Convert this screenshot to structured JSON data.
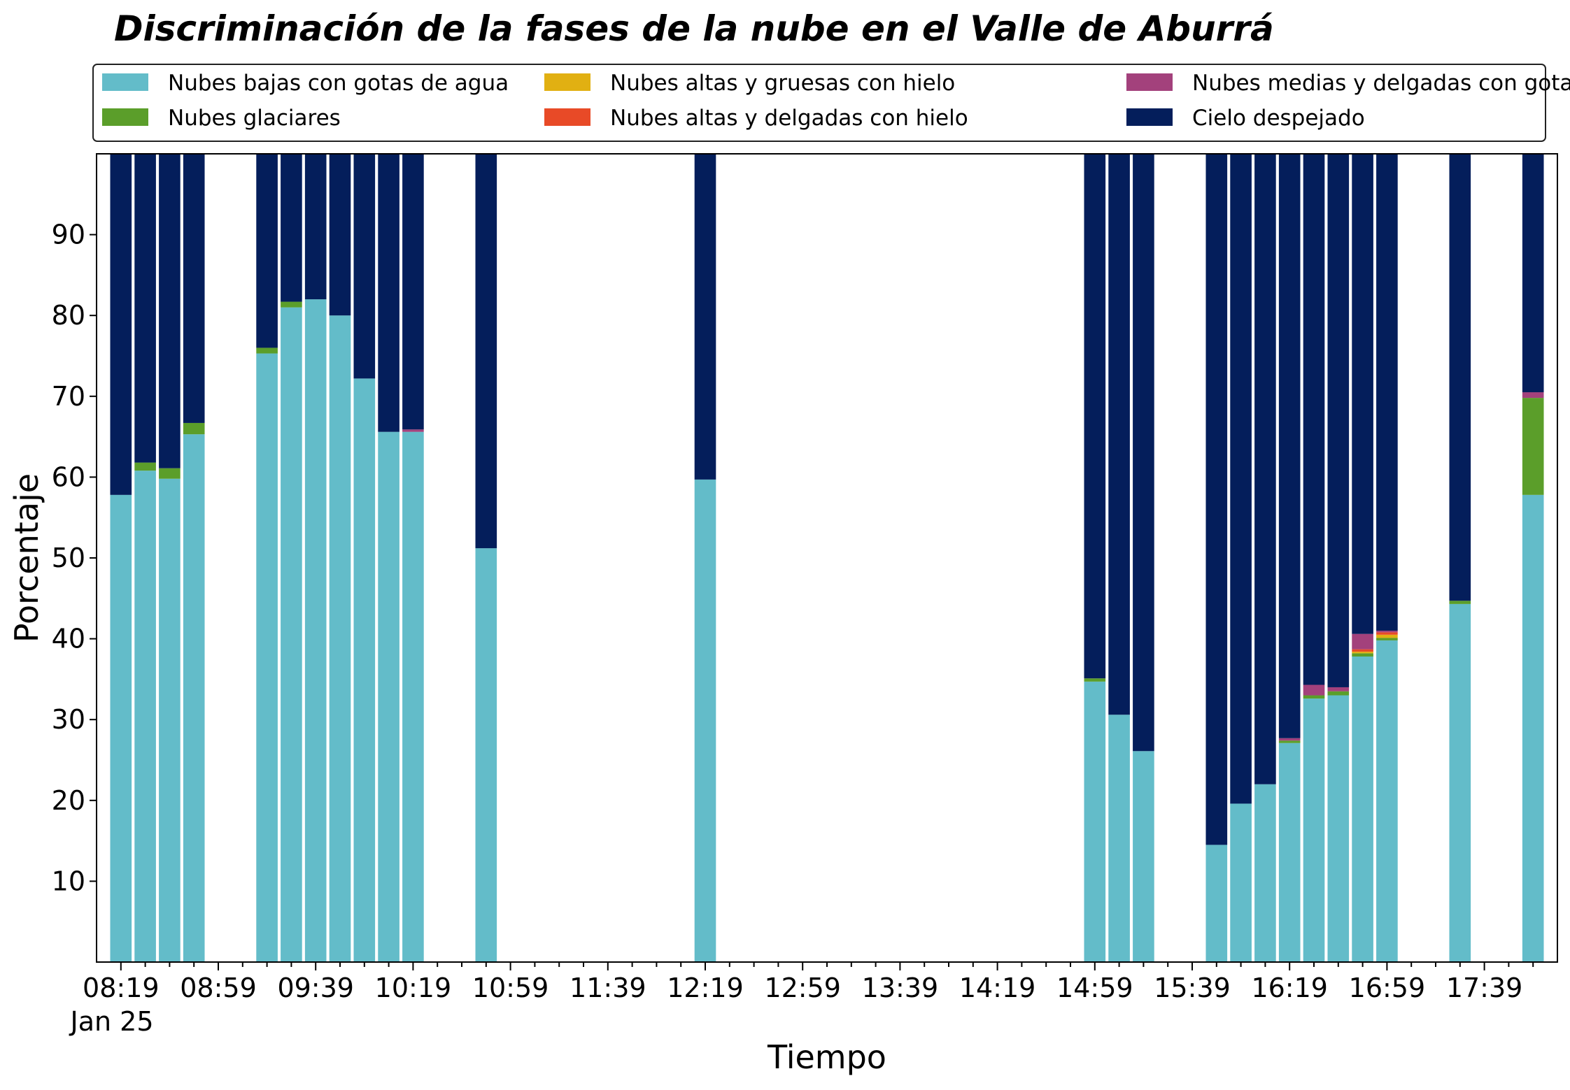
{
  "chart_data": {
    "type": "bar",
    "stacked": true,
    "title": "Discriminación de la fases de la nube en el Valle de Aburrá",
    "xlabel": "Tiempo",
    "ylabel": "Porcentaje",
    "ylim": [
      0,
      100
    ],
    "yticks": [
      10,
      20,
      30,
      40,
      50,
      60,
      70,
      80,
      90
    ],
    "grid": false,
    "legend_placement": "top, above plot, 3 columns",
    "x_start": "08:09",
    "x_end": "18:09",
    "x_step_minutes": 10,
    "x_tick_labels": [
      "08:19",
      "08:59",
      "09:39",
      "10:19",
      "10:59",
      "11:39",
      "12:19",
      "12:59",
      "13:39",
      "14:19",
      "14:59",
      "15:39",
      "16:19",
      "16:59",
      "17:39"
    ],
    "x_sublabel": "Jan 25",
    "times": [
      "08:19",
      "08:29",
      "08:39",
      "08:49",
      "09:19",
      "09:29",
      "09:39",
      "09:49",
      "09:59",
      "10:09",
      "10:19",
      "10:49",
      "12:19",
      "14:59",
      "15:09",
      "15:19",
      "15:49",
      "15:59",
      "16:09",
      "16:19",
      "16:29",
      "16:39",
      "16:49",
      "16:59",
      "17:29",
      "17:59"
    ],
    "series": [
      {
        "name": "Nubes bajas con gotas de agua",
        "color": "#63BCC9",
        "values": [
          57.8,
          60.8,
          59.8,
          65.3,
          75.3,
          81.0,
          82.0,
          80.0,
          72.2,
          65.6,
          65.6,
          51.2,
          59.7,
          34.7,
          30.6,
          26.1,
          14.5,
          19.6,
          22.0,
          27.1,
          32.6,
          33.0,
          37.8,
          39.8,
          44.3,
          57.8
        ]
      },
      {
        "name": "Nubes glaciares",
        "color": "#5B9E2A",
        "values": [
          0,
          1.0,
          1.3,
          1.4,
          0.7,
          0.7,
          0,
          0,
          0,
          0,
          0,
          0,
          0,
          0.4,
          0,
          0,
          0,
          0,
          0,
          0.3,
          0.4,
          0.5,
          0.4,
          0.3,
          0.4,
          12.0
        ]
      },
      {
        "name": "Nubes altas y gruesas con hielo",
        "color": "#E1B012",
        "values": [
          0,
          0,
          0,
          0,
          0,
          0,
          0,
          0,
          0,
          0,
          0,
          0,
          0,
          0,
          0,
          0,
          0,
          0,
          0,
          0,
          0,
          0,
          0.2,
          0.4,
          0,
          0
        ]
      },
      {
        "name": "Nubes altas y delgadas con hielo",
        "color": "#E84A27",
        "values": [
          0,
          0,
          0,
          0,
          0,
          0,
          0,
          0,
          0,
          0,
          0,
          0,
          0,
          0,
          0,
          0,
          0,
          0,
          0,
          0,
          0,
          0,
          0.3,
          0.3,
          0,
          0
        ]
      },
      {
        "name": "Nubes medias y delgadas con gotas de agua",
        "color": "#A3417C",
        "values": [
          0,
          0,
          0,
          0,
          0,
          0,
          0,
          0,
          0,
          0,
          0.3,
          0,
          0,
          0,
          0,
          0,
          0,
          0,
          0,
          0.3,
          1.3,
          0.5,
          1.9,
          0.2,
          0,
          0.7
        ]
      },
      {
        "name": "Cielo despejado",
        "color": "#041E5B",
        "values": [
          42.2,
          38.2,
          38.9,
          33.3,
          24.0,
          18.3,
          18.0,
          20.0,
          27.8,
          34.4,
          34.1,
          48.8,
          40.3,
          64.9,
          69.4,
          73.9,
          85.5,
          80.4,
          78.0,
          72.3,
          65.7,
          66.0,
          59.4,
          59.0,
          55.3,
          29.5
        ]
      }
    ]
  }
}
